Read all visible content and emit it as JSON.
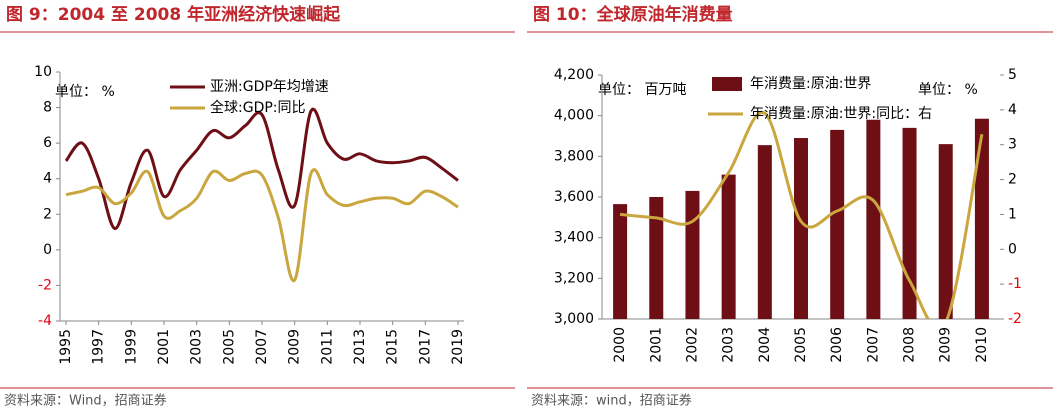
{
  "chart_data": [
    {
      "type": "line",
      "title": "图 9：2004 至 2008 年亚洲经济快速崛起",
      "unit": "单位： %",
      "source": "资料来源：Wind，招商证券",
      "x": [
        1995,
        1996,
        1997,
        1998,
        1999,
        2000,
        2001,
        2002,
        2003,
        2004,
        2005,
        2006,
        2007,
        2008,
        2009,
        2010,
        2011,
        2012,
        2013,
        2014,
        2015,
        2016,
        2017,
        2018,
        2019
      ],
      "xlim": [
        1995,
        2019
      ],
      "xticks": [
        1995,
        1997,
        1999,
        2001,
        2003,
        2005,
        2007,
        2009,
        2011,
        2013,
        2015,
        2017,
        2019
      ],
      "ylim": [
        -4,
        10
      ],
      "yticks": [
        -4,
        -2,
        0,
        2,
        4,
        6,
        8,
        10
      ],
      "series": [
        {
          "name": "亚洲:GDP年均增速",
          "color": "#6e0f16",
          "values": [
            5.0,
            6.0,
            4.0,
            1.2,
            3.8,
            5.6,
            3.0,
            4.5,
            5.6,
            6.7,
            6.3,
            7.0,
            7.6,
            4.5,
            2.5,
            7.8,
            6.0,
            5.1,
            5.4,
            5.0,
            4.9,
            5.0,
            5.2,
            4.6,
            3.9
          ]
        },
        {
          "name": "全球:GDP:同比",
          "color": "#c9a63e",
          "values": [
            3.1,
            3.3,
            3.5,
            2.6,
            3.2,
            4.4,
            1.9,
            2.2,
            2.9,
            4.4,
            3.9,
            4.3,
            4.2,
            1.8,
            -1.7,
            4.3,
            3.1,
            2.5,
            2.7,
            2.9,
            2.9,
            2.6,
            3.3,
            3.0,
            2.4
          ]
        }
      ]
    },
    {
      "type": "bar",
      "title": "图 10：全球原油年消费量",
      "unit": "单位： 百万吨",
      "unit2": "单位： %",
      "source": "资料来源：wind，招商证券",
      "categories": [
        "2000",
        "2001",
        "2002",
        "2003",
        "2004",
        "2005",
        "2006",
        "2007",
        "2008",
        "2009",
        "2010"
      ],
      "ylim": [
        3000,
        4200
      ],
      "yticks": [
        {
          "value": 3000,
          "label": "3,000"
        },
        {
          "value": 3200,
          "label": "3,200"
        },
        {
          "value": 3400,
          "label": "3,400"
        },
        {
          "value": 3600,
          "label": "3,600"
        },
        {
          "value": 3800,
          "label": "3,800"
        },
        {
          "value": 4000,
          "label": "4,000"
        },
        {
          "value": 4200,
          "label": "4,200"
        }
      ],
      "y2lim": [
        -2,
        5
      ],
      "y2ticks": [
        -2,
        -1,
        0,
        1,
        2,
        3,
        4,
        5
      ],
      "series": [
        {
          "name": "年消费量:原油:世界",
          "color": "#6e0f16",
          "values": [
            3565,
            3600,
            3630,
            3710,
            3855,
            3890,
            3930,
            3980,
            3940,
            3860,
            3985
          ]
        },
        {
          "name": "年消费量:原油:世界:同比：右",
          "color": "#c9a63e",
          "axis": "y2",
          "values": [
            1.0,
            0.9,
            0.8,
            2.2,
            3.9,
            0.8,
            1.1,
            1.4,
            -0.9,
            -2.1,
            3.3
          ]
        }
      ]
    }
  ]
}
